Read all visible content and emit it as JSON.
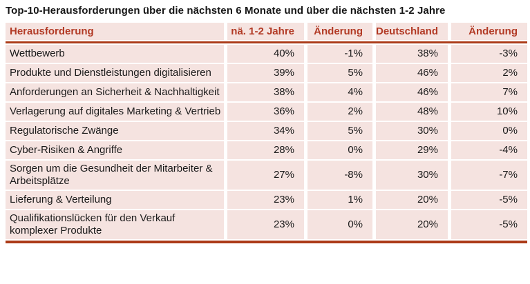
{
  "title": "Top-10-Herausforderungen über die nächsten 6 Monate und über die nächsten 1-2 Jahre",
  "colors": {
    "accent_red": "#B23A25",
    "rule_orange": "#AC3B18",
    "row_pink": "#F5E3E0",
    "body_text": "#1A1A1A",
    "title_text": "#161616",
    "separator_white": "#FFFFFF"
  },
  "chart_data": {
    "type": "table",
    "title": "Top-10-Herausforderungen über die nächsten 6 Monate und über die nächsten 1-2 Jahre",
    "columns": [
      "Herausforderung",
      "nä. 1-2 Jahre",
      "Änderung",
      "Deutschland",
      "Änderung"
    ],
    "rows": [
      [
        "Wettbewerb",
        "40%",
        "-1%",
        "38%",
        "-3%"
      ],
      [
        "Produkte und Dienstleistungen digitalisieren",
        "39%",
        "5%",
        "46%",
        "2%"
      ],
      [
        "Anforderungen an Sicherheit & Nachhaltigkeit",
        "38%",
        "4%",
        "46%",
        "7%"
      ],
      [
        "Verlagerung auf digitales Marketing & Vertrieb",
        "36%",
        "2%",
        "48%",
        "10%"
      ],
      [
        "Regulatorische Zwänge",
        "34%",
        "5%",
        "30%",
        "0%"
      ],
      [
        "Cyber-Risiken & Angriffe",
        "28%",
        "0%",
        "29%",
        "-4%"
      ],
      [
        "Sorgen um die Gesundheit der Mitarbeiter & Arbeitsplätze",
        "27%",
        "-8%",
        "30%",
        "-7%"
      ],
      [
        "Lieferung & Verteilung",
        "23%",
        "1%",
        "20%",
        "-5%"
      ],
      [
        "Qualifikationslücken für den Verkauf komplexer Produkte",
        "23%",
        "0%",
        "20%",
        "-5%"
      ]
    ],
    "layout": {
      "header_text_color": "#B23A25",
      "row_background": "#F5E3E0",
      "rule_color": "#AC3B18",
      "numeric_alignment": "right",
      "grid": "white separators between cells, thick orange rule under header and at bottom"
    }
  }
}
